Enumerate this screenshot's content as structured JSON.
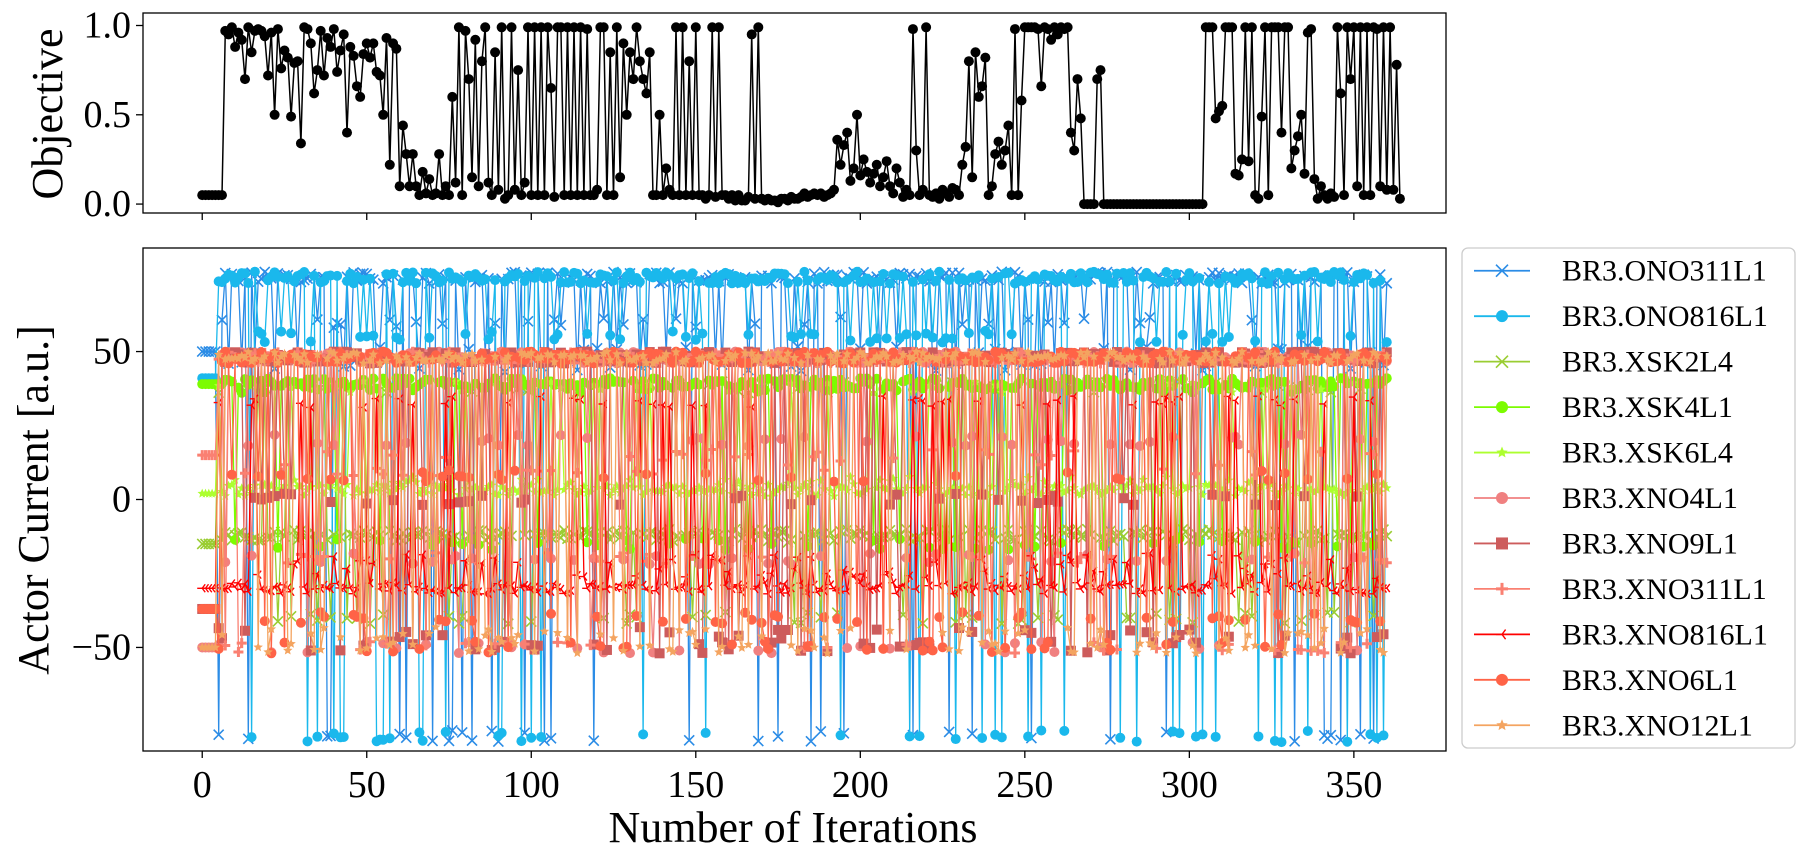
{
  "chart_data": [
    {
      "type": "line",
      "ylabel": "Objective",
      "xlabel": "",
      "xlim": [
        -18,
        378
      ],
      "ylim": [
        -0.05,
        1.07
      ],
      "yticks": [
        0.0,
        0.5,
        1.0
      ],
      "ytick_labels": [
        "0.0",
        "0.5",
        "1.0"
      ],
      "xticks": [
        0,
        50,
        100,
        150,
        200,
        250,
        300,
        350
      ],
      "color": "#000000",
      "marker": "circle",
      "grid": false,
      "series": [
        {
          "values": [
            0.05,
            0.05,
            0.05,
            0.05,
            0.05,
            0.05,
            0.05,
            0.97,
            0.95,
            0.99,
            0.88,
            0.96,
            0.92,
            0.7,
            0.99,
            0.85,
            0.97,
            0.98,
            0.97,
            0.94,
            0.72,
            0.96,
            0.5,
            0.98,
            0.76,
            0.86,
            0.82,
            0.49,
            0.79,
            0.8,
            0.34,
            0.99,
            0.98,
            0.9,
            0.62,
            0.75,
            0.97,
            0.72,
            0.93,
            0.88,
            0.98,
            0.74,
            0.86,
            0.95,
            0.4,
            0.88,
            0.83,
            0.66,
            0.6,
            0.84,
            0.9,
            0.82,
            0.9,
            0.74,
            0.72,
            0.5,
            0.93,
            0.22,
            0.9,
            0.87,
            0.1,
            0.44,
            0.28,
            0.1,
            0.28,
            0.1,
            0.05,
            0.18,
            0.06,
            0.14,
            0.05,
            0.06,
            0.28,
            0.05,
            0.1,
            0.05,
            0.6,
            0.12,
            0.99,
            0.05,
            0.97,
            0.7,
            0.15,
            0.92,
            0.1,
            0.8,
            0.99,
            0.12,
            0.05,
            0.85,
            0.08,
            0.99,
            0.03,
            0.05,
            0.99,
            0.08,
            0.75,
            0.05,
            0.12,
            0.99,
            0.05,
            0.99,
            0.05,
            0.99,
            0.05,
            0.99,
            0.65,
            0.04,
            0.99,
            0.99,
            0.05,
            0.99,
            0.05,
            0.99,
            0.05,
            0.99,
            0.05,
            0.98,
            0.05,
            0.05,
            0.08,
            0.99,
            0.99,
            0.05,
            0.85,
            0.05,
            0.99,
            0.15,
            0.9,
            0.5,
            0.85,
            0.7,
            0.99,
            0.8,
            0.7,
            0.62,
            0.85,
            0.05,
            0.05,
            0.5,
            0.05,
            0.2,
            0.08,
            0.05,
            0.99,
            0.05,
            0.99,
            0.05,
            0.8,
            0.05,
            0.99,
            0.05,
            0.05,
            0.03,
            0.05,
            0.99,
            0.04,
            0.99,
            0.05,
            0.05,
            0.03,
            0.05,
            0.02,
            0.05,
            0.02,
            0.02,
            0.04,
            0.95,
            0.03,
            0.99,
            0.03,
            0.02,
            0.03,
            0.02,
            0.02,
            0.01,
            0.03,
            0.03,
            0.02,
            0.04,
            0.03,
            0.03,
            0.04,
            0.06,
            0.04,
            0.05,
            0.06,
            0.05,
            0.06,
            0.04,
            0.05,
            0.06,
            0.08,
            0.36,
            0.22,
            0.33,
            0.4,
            0.13,
            0.2,
            0.5,
            0.16,
            0.25,
            0.18,
            0.12,
            0.17,
            0.22,
            0.1,
            0.15,
            0.24,
            0.1,
            0.06,
            0.2,
            0.12,
            0.04,
            0.08,
            0.05,
            0.98,
            0.3,
            0.05,
            0.08,
            0.99,
            0.05,
            0.04,
            0.06,
            0.03,
            0.08,
            0.06,
            0.04,
            0.09,
            0.08,
            0.05,
            0.22,
            0.32,
            0.8,
            0.15,
            0.85,
            0.6,
            0.66,
            0.82,
            0.05,
            0.1,
            0.28,
            0.35,
            0.22,
            0.3,
            0.44,
            0.05,
            0.98,
            0.05,
            0.58,
            0.99,
            0.99,
            0.99,
            0.99,
            0.98,
            0.66,
            0.99,
            0.98,
            0.92,
            0.99,
            0.95,
            0.99,
            0.98,
            0.99,
            0.4,
            0.3,
            0.7,
            0.48,
            0.0,
            0.0,
            0.0,
            0.0,
            0.7,
            0.75,
            0.0,
            0.0,
            0.0,
            0.0,
            0.0,
            0.0,
            0.0,
            0.0,
            0.0,
            0.0,
            0.0,
            0.0,
            0.0,
            0.0,
            0.0,
            0.0,
            0.0,
            0.0,
            0.0,
            0.0,
            0.0,
            0.0,
            0.0,
            0.0,
            0.0,
            0.0,
            0.0,
            0.0,
            0.0,
            0.0,
            0.0,
            0.99,
            0.99,
            0.99,
            0.48,
            0.52,
            0.55,
            0.99,
            0.99,
            0.99,
            0.17,
            0.16,
            0.25,
            0.99,
            0.24,
            0.99,
            0.05,
            0.03,
            0.49,
            0.99,
            0.05,
            0.99,
            0.99,
            0.99,
            0.4,
            0.99,
            0.99,
            0.2,
            0.3,
            0.38,
            0.5,
            0.17,
            0.96,
            0.98,
            0.14,
            0.03,
            0.1,
            0.05,
            0.03,
            0.06,
            0.04,
            0.99,
            0.62,
            0.05,
            0.99,
            0.7,
            0.99,
            0.1,
            0.99,
            0.05,
            0.99,
            0.05,
            0.99,
            0.98,
            0.1,
            0.99,
            0.08,
            0.99,
            0.08,
            0.78,
            0.03
          ]
        }
      ]
    },
    {
      "type": "line",
      "xlabel": "Number of Iterations",
      "ylabel": "Actor Current [a.u.]",
      "xlim": [
        -18,
        378
      ],
      "ylim": [
        -85,
        85
      ],
      "xticks": [
        0,
        50,
        100,
        150,
        200,
        250,
        300,
        350
      ],
      "xtick_labels": [
        "0",
        "50",
        "100",
        "150",
        "200",
        "250",
        "300",
        "350"
      ],
      "yticks": [
        -50,
        0,
        50
      ],
      "ytick_labels": [
        "−50",
        "0",
        "50"
      ],
      "grid": false,
      "legend_position": "outside-right",
      "n_points": 361,
      "series": [
        {
          "name": "BR3.ONO311L1",
          "color": "#2b8ce6",
          "marker": "x",
          "base": 50,
          "choices": [
            75,
            -80,
            50,
            60,
            45
          ]
        },
        {
          "name": "BR3.ONO816L1",
          "color": "#1ab8ec",
          "marker": "circle",
          "base": 41,
          "choices": [
            75,
            -80,
            55
          ]
        },
        {
          "name": "BR3.XSK2L4",
          "color": "#9acd32",
          "marker": "x",
          "base": -15,
          "choices": [
            -12,
            -13,
            38,
            -40
          ]
        },
        {
          "name": "BR3.XSK4L1",
          "color": "#7cfc00",
          "marker": "circle",
          "base": 39,
          "choices": [
            39,
            -15,
            38
          ]
        },
        {
          "name": "BR3.XSK6L4",
          "color": "#adff2f",
          "marker": "star",
          "base": 2,
          "choices": [
            3,
            5,
            6,
            38
          ]
        },
        {
          "name": "BR3.XNO4L1",
          "color": "#f08080",
          "marker": "circle",
          "base": -50,
          "choices": [
            48,
            -50,
            20,
            -20
          ]
        },
        {
          "name": "BR3.XNO9L1",
          "color": "#cd5c5c",
          "marker": "square",
          "base": -37,
          "choices": [
            48,
            -50,
            -45,
            0
          ]
        },
        {
          "name": "BR3.XNO311L1",
          "color": "#fa8072",
          "marker": "plus",
          "base": 15,
          "choices": [
            48,
            -50,
            10,
            15,
            -20
          ]
        },
        {
          "name": "BR3.XNO816L1",
          "color": "#ff0000",
          "marker": "tri",
          "base": -30,
          "choices": [
            -30,
            -20,
            -25,
            33
          ]
        },
        {
          "name": "BR3.XNO6L1",
          "color": "#ff6347",
          "marker": "circle",
          "base": -37,
          "choices": [
            48,
            -50,
            8,
            -40
          ]
        },
        {
          "name": "BR3.XNO12L1",
          "color": "#f4a460",
          "marker": "star",
          "base": -50,
          "choices": [
            48,
            -50,
            -45
          ]
        }
      ]
    }
  ]
}
